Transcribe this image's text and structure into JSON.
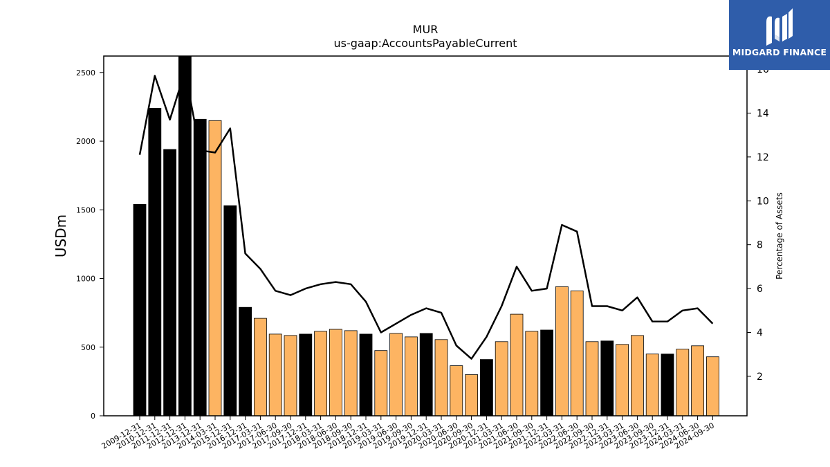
{
  "logo": {
    "text": "MIDGARD FINANCE"
  },
  "chart_data": {
    "type": "bar",
    "title": "MUR",
    "subtitle": "us-gaap:AccountsPayableCurrent",
    "ylabel": "USDm",
    "y2label": "Percentage of Assets",
    "ylim": [
      0,
      2620
    ],
    "y2lim": [
      0.2,
      16.6
    ],
    "yticks": [
      0,
      500,
      1000,
      1500,
      2000,
      2500
    ],
    "y2ticks": [
      2,
      4,
      6,
      8,
      10,
      12,
      14,
      16
    ],
    "grid": false,
    "colors": {
      "annual": "#000000",
      "quarterly": "#fdb462",
      "line": "#000000"
    },
    "categories": [
      "2009-12-31",
      "2010-12-31",
      "2011-12-31",
      "2012-12-31",
      "2013-12-31",
      "2014-03-31",
      "2015-12-31",
      "2016-12-31",
      "2017-03-31",
      "2017-06-30",
      "2017-09-30",
      "2017-12-31",
      "2018-03-31",
      "2018-06-30",
      "2018-09-30",
      "2018-12-31",
      "2019-03-31",
      "2019-06-30",
      "2019-09-30",
      "2019-12-31",
      "2020-03-31",
      "2020-06-30",
      "2020-09-30",
      "2020-12-31",
      "2021-03-31",
      "2021-06-30",
      "2021-09-30",
      "2021-12-31",
      "2022-03-31",
      "2022-06-30",
      "2022-09-30",
      "2022-12-31",
      "2023-03-31",
      "2023-06-30",
      "2023-09-30",
      "2023-12-31",
      "2024-03-31",
      "2024-06-30",
      "2024-09-30"
    ],
    "series": [
      {
        "type": "bar",
        "values": [
          1540,
          2240,
          1940,
          2630,
          2160,
          2150,
          1530,
          790,
          710,
          595,
          585,
          595,
          615,
          630,
          620,
          595,
          475,
          600,
          575,
          600,
          555,
          365,
          300,
          410,
          540,
          740,
          615,
          625,
          940,
          910,
          540,
          545,
          520,
          585,
          450,
          450,
          485,
          510,
          430
        ],
        "periods": [
          "annual",
          "annual",
          "annual",
          "annual",
          "annual",
          "quarterly",
          "annual",
          "annual",
          "quarterly",
          "quarterly",
          "quarterly",
          "annual",
          "quarterly",
          "quarterly",
          "quarterly",
          "annual",
          "quarterly",
          "quarterly",
          "quarterly",
          "annual",
          "quarterly",
          "quarterly",
          "quarterly",
          "annual",
          "quarterly",
          "quarterly",
          "quarterly",
          "annual",
          "quarterly",
          "quarterly",
          "quarterly",
          "annual",
          "quarterly",
          "quarterly",
          "quarterly",
          "annual",
          "quarterly",
          "quarterly",
          "quarterly"
        ]
      },
      {
        "type": "line",
        "axis": "right",
        "values": [
          12.1,
          15.7,
          13.7,
          15.9,
          12.3,
          12.2,
          13.3,
          7.6,
          6.9,
          5.9,
          5.7,
          6.0,
          6.2,
          6.3,
          6.2,
          5.4,
          4.0,
          4.4,
          4.8,
          5.1,
          4.9,
          3.4,
          2.8,
          3.8,
          5.2,
          7.0,
          5.9,
          6.0,
          8.9,
          8.6,
          5.2,
          5.2,
          5.0,
          5.6,
          4.5,
          4.5,
          5.0,
          5.1,
          4.4
        ]
      }
    ]
  }
}
